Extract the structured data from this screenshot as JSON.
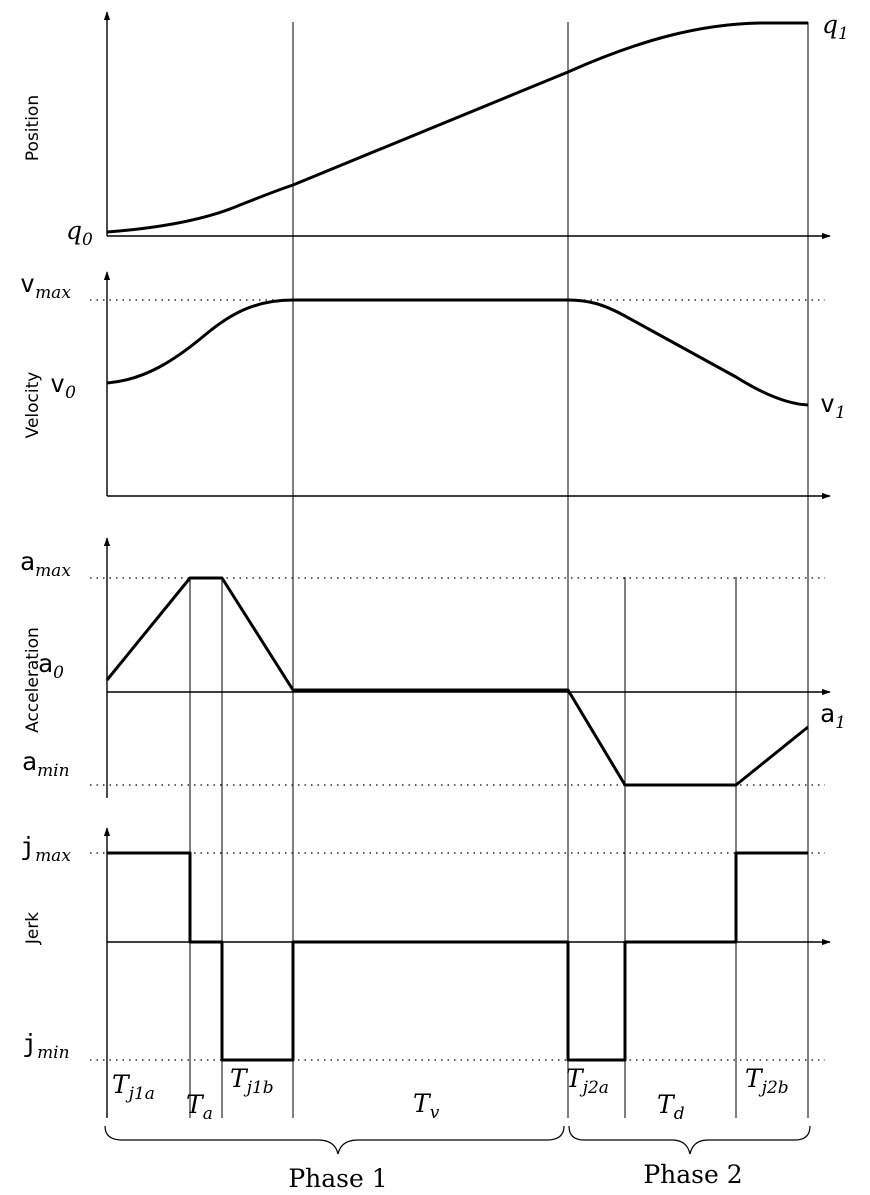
{
  "panels": {
    "position": {
      "label": "Position"
    },
    "velocity": {
      "label": "Velocity"
    },
    "acceleration": {
      "label": "Acceleration"
    },
    "jerk": {
      "label": "Jerk"
    }
  },
  "symbols": {
    "q0": {
      "base": "q",
      "sub": "0"
    },
    "q1": {
      "base": "q",
      "sub": "1"
    },
    "vmax": {
      "base": "v",
      "sub": "max"
    },
    "v0": {
      "base": "v",
      "sub": "0"
    },
    "v1": {
      "base": "v",
      "sub": "1"
    },
    "amax": {
      "base": "a",
      "sub": "max"
    },
    "a0": {
      "base": "a",
      "sub": "0"
    },
    "a1": {
      "base": "a",
      "sub": "1"
    },
    "amin": {
      "base": "a",
      "sub": "min"
    },
    "jmax": {
      "base": "j",
      "sub": "max"
    },
    "jmin": {
      "base": "j",
      "sub": "min"
    }
  },
  "intervals": {
    "tj1a": {
      "base": "T",
      "sub": "j1a"
    },
    "ta": {
      "base": "T",
      "sub": "a"
    },
    "tj1b": {
      "base": "T",
      "sub": "j1b"
    },
    "tv": {
      "base": "T",
      "sub": "v"
    },
    "tj2a": {
      "base": "T",
      "sub": "j2a"
    },
    "td": {
      "base": "T",
      "sub": "d"
    },
    "tj2b": {
      "base": "T",
      "sub": "j2b"
    }
  },
  "phases": {
    "phase1": "Phase 1",
    "phase2": "Phase 2"
  },
  "colors": {
    "stroke": "#000000",
    "background": "#ffffff"
  }
}
